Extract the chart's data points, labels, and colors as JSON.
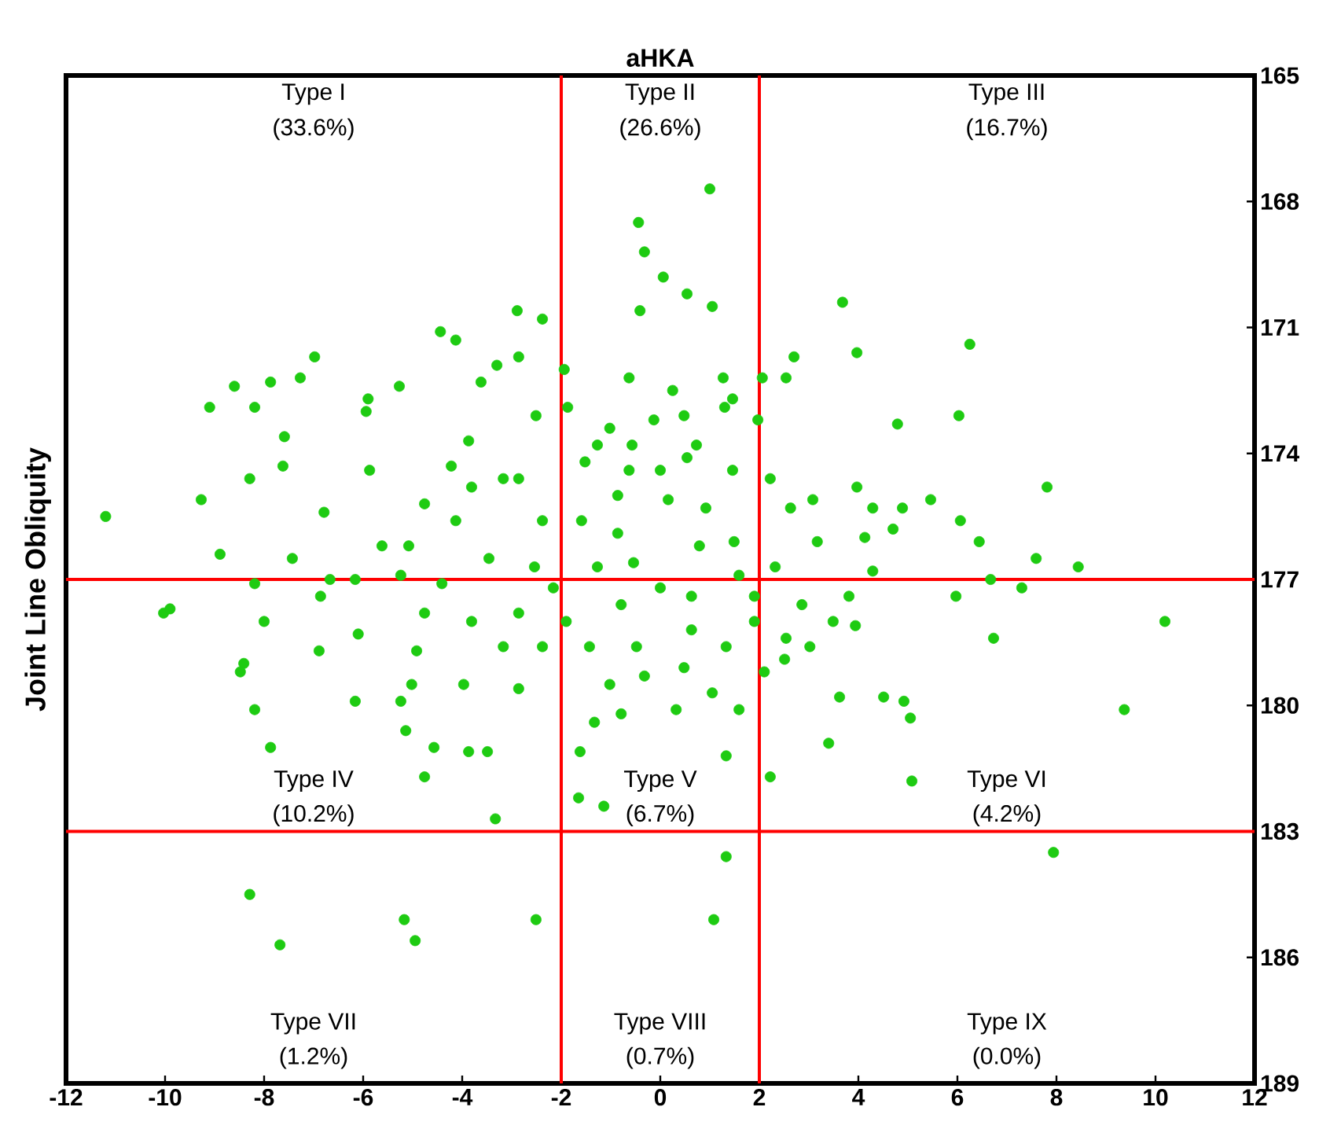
{
  "chart_data": {
    "type": "scatter",
    "title": "aHKA",
    "ylabel": "Joint Line Obliquity",
    "xlim": [
      -12,
      12
    ],
    "ylim": [
      189,
      165
    ],
    "xticks": [
      -12,
      -10,
      -8,
      -6,
      -4,
      -2,
      0,
      2,
      4,
      6,
      8,
      10,
      12
    ],
    "yticks": [
      165,
      168,
      171,
      174,
      177,
      180,
      183,
      186,
      189
    ],
    "marker": "circle",
    "series": [
      {
        "color": "#1ecb12",
        "x": [
          1.0,
          -0.44,
          -0.32,
          0.06,
          0.54,
          -0.41,
          1.05,
          3.68,
          -2.38,
          -2.89,
          -4.44,
          -4.13,
          6.25,
          3.97,
          -6.98,
          -7.87,
          -8.6,
          -9.1,
          -8.19,
          -7.27,
          -5.94,
          -5.9,
          -5.27,
          6.03,
          4.79,
          -11.2,
          -9.27,
          -8.29,
          -7.59,
          -7.62,
          -6.79,
          -5.87,
          7.81,
          7.59,
          8.44,
          10.19,
          9.37,
          -10.03,
          -9.9,
          -8.89,
          -8.19,
          -7.43,
          -6.86,
          -6.67,
          -8.0,
          -8.41,
          -8.48,
          -8.19,
          -7.87,
          -6.89,
          -6.1,
          -4.92,
          -6.16,
          -5.24,
          -5.02,
          -5.14,
          -4.76,
          -4.57,
          -3.87,
          -3.33,
          -3.49,
          -3.97,
          -2.86,
          -8.29,
          -7.68,
          -5.17,
          -4.95,
          -2.51,
          -1.62,
          -1.14,
          -1.65,
          1.33,
          1.08,
          1.33,
          2.22,
          3.4,
          5.08,
          7.94,
          4.51,
          4.92,
          5.05,
          3.62,
          2.1,
          2.51,
          3.02,
          3.94,
          6.73,
          7.3,
          6.67,
          5.97,
          4.29,
          3.81,
          2.32,
          4.13,
          4.7,
          4.89,
          5.46,
          6.06,
          6.44,
          3.08,
          2.63,
          3.97,
          4.29,
          2.22,
          1.97,
          1.46,
          1.27,
          1.3,
          2.06,
          2.54,
          2.7,
          -0.63,
          0.25,
          0.48,
          -0.13,
          -0.57,
          0.73,
          0.54,
          -1.27,
          -1.52,
          -1.02,
          -1.94,
          -1.87,
          -2.51,
          -3.62,
          -3.3,
          -2.86,
          -3.17,
          -3.81,
          -4.13,
          -4.76,
          -5.08,
          -5.62,
          -6.16,
          -5.24,
          -4.41,
          -3.46,
          -2.38,
          -2.86,
          -3.87,
          -4.22,
          -0.63,
          0.16,
          0.92,
          -0.86,
          0.79,
          1.49,
          -1.27,
          -0.54,
          0.0,
          0.63,
          1.59,
          -0.79,
          -1.9,
          -1.43,
          -0.48,
          0.63,
          1.33,
          1.9,
          -1.02,
          -0.32,
          0.48,
          1.05,
          1.9,
          -0.79,
          0.32,
          1.59,
          -1.33,
          -2.86,
          -3.81,
          -4.76,
          -2.38,
          -3.17,
          -2.16,
          -2.54,
          -1.59,
          -0.86,
          0.0,
          1.46,
          3.17,
          2.86,
          3.49,
          2.54
        ],
        "values": [
          167.7,
          168.5,
          169.2,
          169.8,
          170.2,
          170.6,
          170.5,
          170.4,
          170.8,
          170.6,
          171.1,
          171.3,
          171.4,
          171.6,
          171.7,
          172.3,
          172.4,
          172.9,
          172.9,
          172.2,
          173.0,
          172.7,
          172.4,
          173.1,
          173.3,
          175.5,
          175.1,
          174.6,
          173.6,
          174.3,
          175.4,
          174.4,
          174.8,
          176.5,
          176.7,
          178.0,
          180.1,
          177.8,
          177.7,
          176.4,
          177.1,
          176.5,
          177.4,
          177.0,
          178.0,
          179.0,
          179.2,
          180.1,
          181.0,
          178.7,
          178.3,
          178.7,
          179.9,
          179.9,
          179.5,
          180.6,
          181.7,
          181.0,
          181.1,
          182.7,
          181.1,
          179.5,
          179.6,
          184.5,
          185.7,
          185.1,
          185.6,
          185.1,
          181.1,
          182.4,
          182.2,
          183.6,
          185.1,
          181.2,
          181.7,
          180.9,
          181.8,
          183.5,
          179.8,
          179.9,
          180.3,
          179.8,
          179.2,
          178.9,
          178.6,
          178.1,
          178.4,
          177.2,
          177.0,
          177.4,
          176.8,
          177.4,
          176.7,
          176.0,
          175.8,
          175.3,
          175.1,
          175.6,
          176.1,
          175.1,
          175.3,
          174.8,
          175.3,
          174.6,
          173.2,
          172.7,
          172.2,
          172.9,
          172.2,
          172.2,
          171.7,
          172.2,
          172.5,
          173.1,
          173.2,
          173.8,
          173.8,
          174.1,
          173.8,
          174.2,
          173.4,
          172.0,
          172.9,
          173.1,
          172.3,
          171.9,
          171.7,
          174.6,
          174.8,
          175.6,
          175.2,
          176.2,
          176.2,
          177.0,
          176.9,
          177.1,
          176.5,
          175.6,
          174.6,
          173.7,
          174.3,
          174.4,
          175.1,
          175.3,
          175.9,
          176.2,
          176.1,
          176.7,
          176.6,
          177.2,
          177.4,
          176.9,
          177.6,
          178.0,
          178.6,
          178.6,
          178.2,
          178.6,
          177.4,
          179.5,
          179.3,
          179.1,
          179.7,
          178.0,
          180.2,
          180.1,
          180.1,
          180.4,
          177.8,
          178.0,
          177.8,
          178.6,
          178.6,
          177.2,
          176.7,
          175.6,
          175.0,
          174.4,
          174.4,
          176.1,
          177.6,
          178.0,
          178.4
        ]
      }
    ],
    "ref_lines": [
      {
        "axis": "x",
        "value": -2,
        "color": "#ff0000"
      },
      {
        "axis": "x",
        "value": 2,
        "color": "#ff0000"
      },
      {
        "axis": "y",
        "value": 177,
        "color": "#ff0000"
      },
      {
        "axis": "y",
        "value": 183,
        "color": "#ff0000"
      }
    ],
    "annotations": [
      "Type I",
      "(33.6%)",
      "Type II",
      "(26.6%)",
      "Type III",
      "(16.7%)",
      "Type IV",
      "(10.2%)",
      "Type V",
      "(6.7%)",
      "Type VI",
      "(4.2%)",
      "Type VII",
      "(1.2%)",
      "Type VIII",
      "(0.7%)",
      "Type IX",
      "(0.0%)"
    ]
  }
}
